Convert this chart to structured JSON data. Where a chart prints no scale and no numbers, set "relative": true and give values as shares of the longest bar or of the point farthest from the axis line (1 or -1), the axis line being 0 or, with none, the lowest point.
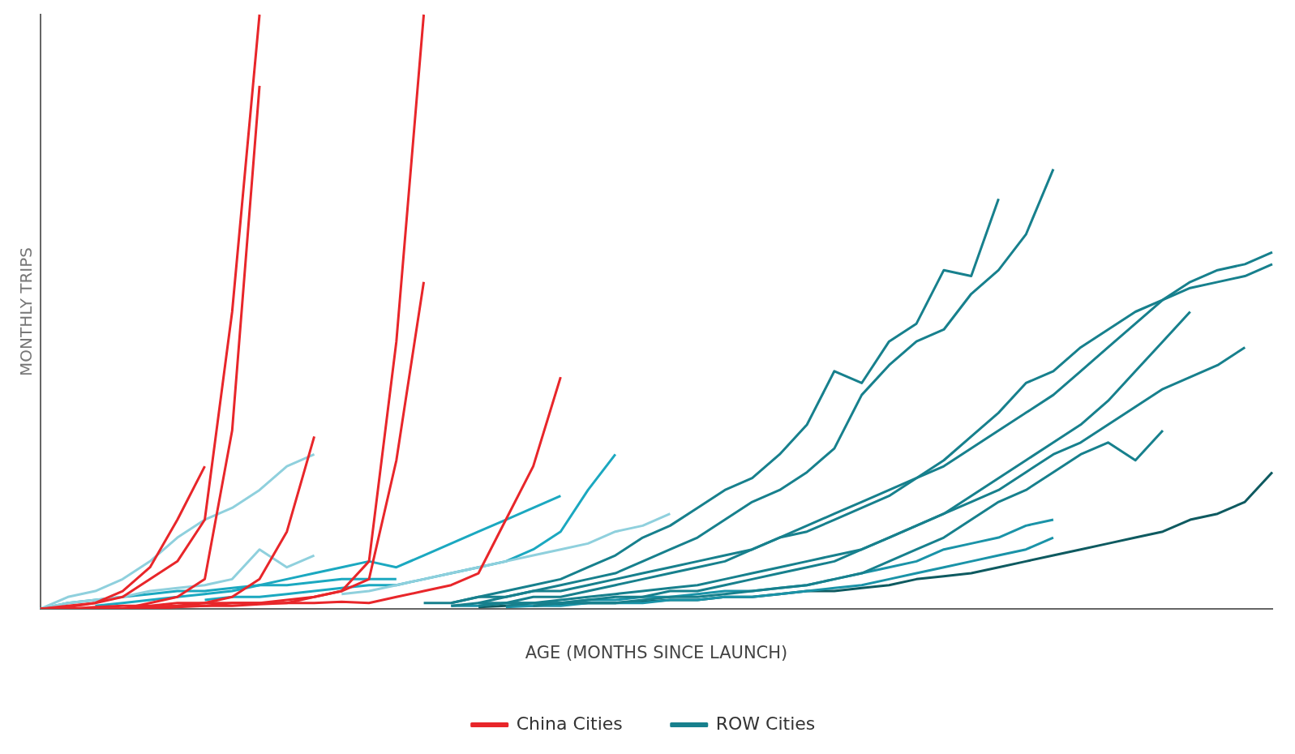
{
  "chart_data": {
    "type": "line",
    "xlabel": "AGE (MONTHS SINCE LAUNCH)",
    "ylabel": "MONTHLY TRIPS",
    "relative": true,
    "legend": "bottom",
    "marker": "none",
    "grid": false,
    "categories": [
      null,
      null,
      null,
      null,
      null,
      null,
      null,
      null,
      null,
      null,
      null,
      null,
      null,
      null,
      null,
      null,
      null,
      null,
      null,
      null,
      null,
      null,
      null,
      null,
      null,
      null,
      null,
      null,
      null,
      null,
      null,
      null,
      null,
      null,
      null,
      null,
      null,
      null,
      null,
      null,
      null,
      null,
      null,
      null,
      null,
      null
    ],
    "series": [
      {
        "name": "China Cities",
        "color": "#e8262a",
        "values": [
          0,
          0.005,
          0.01,
          0.02,
          0.05,
          0.08,
          0.15,
          0.5,
          1,
          null,
          null,
          null,
          null,
          null,
          null,
          null,
          null,
          null,
          null,
          null,
          null,
          null,
          null,
          null,
          null,
          null,
          null,
          null,
          null,
          null,
          null,
          null,
          null,
          null,
          null,
          null,
          null,
          null,
          null,
          null,
          null,
          null,
          null,
          null,
          null,
          null
        ]
      },
      {
        "color": "#e8262a",
        "values": [
          0,
          0,
          0,
          0,
          0.01,
          0.02,
          0.05,
          0.3,
          0.88,
          null,
          null,
          null,
          null,
          null,
          null,
          null,
          null,
          null,
          null,
          null,
          null,
          null,
          null,
          null,
          null,
          null,
          null,
          null,
          null,
          null,
          null,
          null,
          null,
          null,
          null,
          null,
          null,
          null,
          null,
          null,
          null,
          null,
          null,
          null,
          null,
          null
        ]
      },
      {
        "color": "#e8262a",
        "values": [
          0,
          0.003,
          0.01,
          0.03,
          0.07,
          0.15,
          0.24,
          null,
          null,
          null,
          null,
          null,
          null,
          null,
          null,
          null,
          null,
          null,
          null,
          null,
          null,
          null,
          null,
          null,
          null,
          null,
          null,
          null,
          null,
          null,
          null,
          null,
          null,
          null,
          null,
          null,
          null,
          null,
          null,
          null,
          null,
          null,
          null,
          null,
          null,
          null
        ]
      },
      {
        "color": "#e8262a",
        "values": [
          0,
          0,
          0.003,
          0.005,
          0.005,
          0.01,
          0.01,
          0.02,
          0.05,
          0.13,
          0.29,
          null,
          null,
          null,
          null,
          null,
          null,
          null,
          null,
          null,
          null,
          null,
          null,
          null,
          null,
          null,
          null,
          null,
          null,
          null,
          null,
          null,
          null,
          null,
          null,
          null,
          null,
          null,
          null,
          null,
          null,
          null,
          null,
          null,
          null,
          null
        ]
      },
      {
        "color": "#e8262a",
        "values": [
          0,
          0,
          0,
          0,
          0.003,
          0.005,
          0.005,
          0.01,
          0.01,
          0.01,
          0.02,
          0.03,
          0.08,
          0.45,
          1,
          null,
          null,
          null,
          null,
          null,
          null,
          null,
          null,
          null,
          null,
          null,
          null,
          null,
          null,
          null,
          null,
          null,
          null,
          null,
          null,
          null,
          null,
          null,
          null,
          null,
          null,
          null,
          null,
          null,
          null,
          null
        ]
      },
      {
        "color": "#e8262a",
        "values": [
          null,
          null,
          0,
          0,
          0.003,
          0.005,
          0.01,
          0.01,
          0.01,
          0.015,
          0.02,
          0.03,
          0.05,
          0.25,
          0.55,
          null,
          null,
          null,
          null,
          null,
          null,
          null,
          null,
          null,
          null,
          null,
          null,
          null,
          null,
          null,
          null,
          null,
          null,
          null,
          null,
          null,
          null,
          null,
          null,
          null,
          null,
          null,
          null,
          null,
          null,
          null
        ]
      },
      {
        "color": "#e8262a",
        "values": [
          0,
          0,
          0,
          0,
          0,
          0.003,
          0.005,
          0.005,
          0.008,
          0.01,
          0.01,
          0.012,
          0.01,
          0.02,
          0.03,
          0.04,
          0.06,
          0.15,
          0.24,
          0.39,
          null,
          null,
          null,
          null,
          null,
          null,
          null,
          null,
          null,
          null,
          null,
          null,
          null,
          null,
          null,
          null,
          null,
          null,
          null,
          null,
          null,
          null,
          null,
          null,
          null,
          null
        ]
      },
      {
        "color": "#8fd0dd",
        "values": [
          0,
          0.02,
          0.03,
          0.05,
          0.08,
          0.12,
          0.15,
          0.17,
          0.2,
          0.24,
          0.26,
          null,
          null,
          null,
          null,
          null,
          null,
          null,
          null,
          null,
          null,
          null,
          null,
          null,
          null,
          null,
          null,
          null,
          null,
          null,
          null,
          null,
          null,
          null,
          null,
          null,
          null,
          null,
          null,
          null,
          null,
          null,
          null,
          null,
          null,
          null
        ]
      },
      {
        "color": "#8fd0dd",
        "values": [
          0,
          0.01,
          0.015,
          0.02,
          0.03,
          0.035,
          0.04,
          0.05,
          0.1,
          0.07,
          0.09,
          null,
          null,
          null,
          null,
          null,
          null,
          null,
          null,
          null,
          null,
          null,
          null,
          null,
          null,
          null,
          null,
          null,
          null,
          null,
          null,
          null,
          null,
          null,
          null,
          null,
          null,
          null,
          null,
          null,
          null,
          null,
          null,
          null,
          null,
          null
        ]
      },
      {
        "color": "#8fd0dd",
        "values": [
          null,
          null,
          null,
          null,
          null,
          null,
          null,
          null,
          null,
          null,
          null,
          0.025,
          0.03,
          0.04,
          0.05,
          0.06,
          0.07,
          0.08,
          0.09,
          0.1,
          0.11,
          0.13,
          0.14,
          0.16,
          null,
          null,
          null,
          null,
          null,
          null,
          null,
          null,
          null,
          null,
          null,
          null,
          null,
          null,
          null,
          null,
          null,
          null,
          null,
          null,
          null,
          null
        ]
      },
      {
        "color": "#1ba8c0",
        "values": [
          null,
          null,
          null,
          null,
          null,
          null,
          0.015,
          0.02,
          0.02,
          0.025,
          0.03,
          0.035,
          0.04,
          0.04,
          0.05,
          0.06,
          0.07,
          0.08,
          0.1,
          0.13,
          0.2,
          0.26,
          null,
          null,
          null,
          null,
          null,
          null,
          null,
          null,
          null,
          null,
          null,
          null,
          null,
          null,
          null,
          null,
          null,
          null,
          null,
          null,
          null,
          null,
          null,
          null
        ]
      },
      {
        "color": "#1ba8c0",
        "values": [
          null,
          null,
          0.005,
          0.01,
          0.015,
          0.02,
          0.025,
          0.03,
          0.04,
          0.05,
          0.06,
          0.07,
          0.08,
          0.07,
          0.09,
          0.11,
          0.13,
          0.15,
          0.17,
          0.19,
          null,
          null,
          null,
          null,
          null,
          null,
          null,
          null,
          null,
          null,
          null,
          null,
          null,
          null,
          null,
          null,
          null,
          null,
          null,
          null,
          null,
          null,
          null,
          null,
          null,
          null
        ]
      },
      {
        "color": "#1ba8c0",
        "values": [
          0,
          0.01,
          0.015,
          0.02,
          0.025,
          0.03,
          0.03,
          0.035,
          0.04,
          0.04,
          0.045,
          0.05,
          0.05,
          0.05,
          null,
          null,
          null,
          null,
          null,
          null,
          null,
          null,
          null,
          null,
          null,
          null,
          null,
          null,
          null,
          null,
          null,
          null,
          null,
          null,
          null,
          null,
          null,
          null,
          null,
          null,
          null,
          null,
          null,
          null,
          null,
          null
        ]
      },
      {
        "name": "ROW Cities",
        "color": "#17808d",
        "values": [
          null,
          null,
          null,
          null,
          null,
          null,
          null,
          null,
          null,
          null,
          null,
          null,
          null,
          null,
          null,
          0.01,
          0.02,
          0.03,
          0.04,
          0.05,
          0.07,
          0.09,
          0.12,
          0.14,
          0.17,
          0.2,
          0.22,
          0.26,
          0.31,
          0.4,
          0.38,
          0.45,
          0.48,
          0.57,
          0.56,
          0.69,
          null,
          null,
          null,
          null,
          null,
          null,
          null,
          null,
          null,
          null
        ]
      },
      {
        "color": "#17808d",
        "values": [
          null,
          null,
          null,
          null,
          null,
          null,
          null,
          null,
          null,
          null,
          null,
          null,
          null,
          null,
          null,
          null,
          0.01,
          0.02,
          0.03,
          0.04,
          0.05,
          0.06,
          0.08,
          0.1,
          0.12,
          0.15,
          0.18,
          0.2,
          0.23,
          0.27,
          0.36,
          0.41,
          0.45,
          0.47,
          0.53,
          0.57,
          0.63,
          0.74,
          null,
          null,
          null,
          null,
          null,
          null,
          null,
          null
        ]
      },
      {
        "color": "#17808d",
        "values": [
          null,
          null,
          null,
          null,
          null,
          null,
          null,
          null,
          null,
          null,
          null,
          null,
          null,
          null,
          0.01,
          0.01,
          0.02,
          0.02,
          0.03,
          0.03,
          0.04,
          0.05,
          0.06,
          0.07,
          0.08,
          0.09,
          0.1,
          0.12,
          0.13,
          0.15,
          0.17,
          0.19,
          0.22,
          0.25,
          0.29,
          0.33,
          0.38,
          0.4,
          0.44,
          0.47,
          0.5,
          0.52,
          0.55,
          0.57,
          0.58,
          0.6
        ]
      },
      {
        "color": "#17808d",
        "values": [
          null,
          null,
          null,
          null,
          null,
          null,
          null,
          null,
          null,
          null,
          null,
          null,
          null,
          null,
          null,
          0.005,
          0.01,
          0.01,
          0.02,
          0.02,
          0.03,
          0.04,
          0.05,
          0.06,
          0.07,
          0.08,
          0.1,
          0.12,
          0.14,
          0.16,
          0.18,
          0.2,
          0.22,
          0.24,
          0.27,
          0.3,
          0.33,
          0.36,
          0.4,
          0.44,
          0.48,
          0.52,
          0.54,
          0.55,
          0.56,
          0.58
        ]
      },
      {
        "color": "#17808d",
        "values": [
          null,
          null,
          null,
          null,
          null,
          null,
          null,
          null,
          null,
          null,
          null,
          null,
          null,
          null,
          null,
          null,
          0.005,
          0.01,
          0.01,
          0.015,
          0.02,
          0.025,
          0.03,
          0.035,
          0.04,
          0.05,
          0.06,
          0.07,
          0.08,
          0.09,
          0.1,
          0.12,
          0.14,
          0.16,
          0.18,
          0.2,
          0.23,
          0.26,
          0.28,
          0.31,
          0.34,
          0.37,
          0.39,
          0.41,
          0.44,
          null
        ]
      },
      {
        "color": "#17808d",
        "values": [
          null,
          null,
          null,
          null,
          null,
          null,
          null,
          null,
          null,
          null,
          null,
          null,
          null,
          null,
          null,
          null,
          null,
          0.005,
          0.01,
          0.01,
          0.015,
          0.02,
          0.02,
          0.03,
          0.03,
          0.04,
          0.05,
          0.06,
          0.07,
          0.08,
          0.1,
          0.12,
          0.14,
          0.16,
          0.19,
          0.22,
          0.25,
          0.28,
          0.31,
          0.35,
          0.4,
          0.45,
          0.5,
          null,
          null,
          null
        ]
      },
      {
        "color": "#17808d",
        "values": [
          null,
          null,
          null,
          null,
          null,
          null,
          null,
          null,
          null,
          null,
          null,
          null,
          null,
          null,
          null,
          null,
          null,
          null,
          0.005,
          0.01,
          0.01,
          0.01,
          0.015,
          0.02,
          0.02,
          0.025,
          0.03,
          0.035,
          0.04,
          0.05,
          0.06,
          0.08,
          0.1,
          0.12,
          0.15,
          0.18,
          0.2,
          0.23,
          0.26,
          0.28,
          0.25,
          0.3,
          null,
          null,
          null,
          null
        ]
      },
      {
        "color": "#1a93a8",
        "values": [
          null,
          null,
          null,
          null,
          null,
          null,
          null,
          null,
          null,
          null,
          null,
          null,
          null,
          null,
          null,
          0.005,
          0.005,
          0.01,
          0.01,
          0.01,
          0.015,
          0.015,
          0.02,
          0.02,
          0.025,
          0.03,
          0.03,
          0.035,
          0.04,
          0.05,
          0.06,
          0.07,
          0.08,
          0.1,
          0.11,
          0.12,
          0.14,
          0.15,
          null,
          null,
          null,
          null,
          null,
          null,
          null,
          null
        ]
      },
      {
        "color": "#1a93a8",
        "values": [
          null,
          null,
          null,
          null,
          null,
          null,
          null,
          null,
          null,
          null,
          null,
          null,
          null,
          null,
          null,
          null,
          null,
          0.003,
          0.005,
          0.005,
          0.01,
          0.01,
          0.01,
          0.015,
          0.015,
          0.02,
          0.02,
          0.025,
          0.03,
          0.035,
          0.04,
          0.05,
          0.06,
          0.07,
          0.08,
          0.09,
          0.1,
          0.12,
          null,
          null,
          null,
          null,
          null,
          null,
          null,
          null
        ]
      },
      {
        "color": "#0e5a60",
        "values": [
          null,
          null,
          null,
          null,
          null,
          null,
          null,
          null,
          null,
          null,
          null,
          null,
          null,
          null,
          null,
          null,
          0.003,
          0.005,
          0.005,
          0.008,
          0.01,
          0.01,
          0.012,
          0.015,
          0.015,
          0.02,
          0.02,
          0.025,
          0.03,
          0.03,
          0.035,
          0.04,
          0.05,
          0.055,
          0.06,
          0.07,
          0.08,
          0.09,
          0.1,
          0.11,
          0.12,
          0.13,
          0.15,
          0.16,
          0.18,
          0.23
        ]
      }
    ]
  }
}
